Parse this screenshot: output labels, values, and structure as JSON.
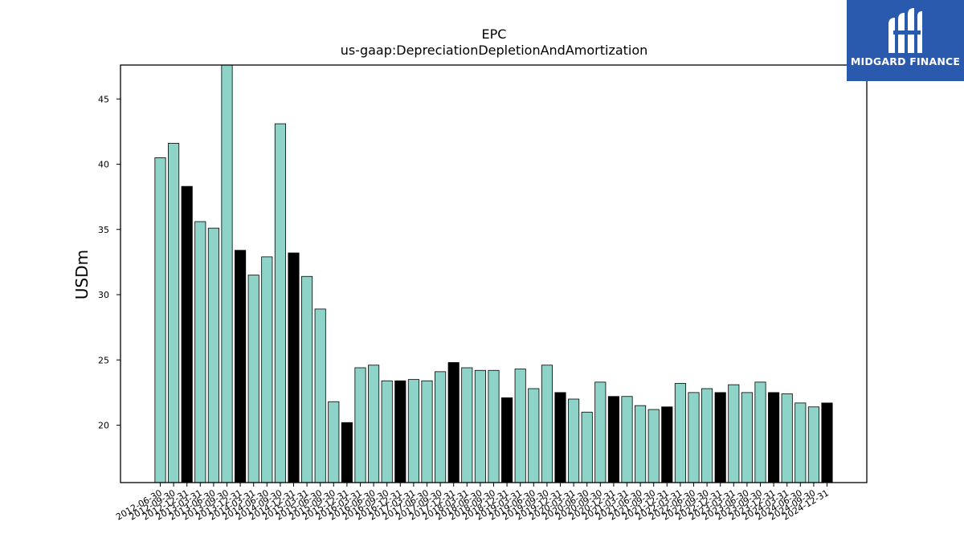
{
  "logo": {
    "text": "MIDGARD FINANCE",
    "icon": "midgard-finance-logo-icon"
  },
  "chart_data": {
    "type": "bar",
    "title": "EPC",
    "subtitle": "us-gaap:DepreciationDepletionAndAmortization",
    "xlabel": "",
    "ylabel": "USDm",
    "ylim": [
      15.6,
      47.6
    ],
    "yticks": [
      20,
      25,
      30,
      35,
      40,
      45
    ],
    "grid": false,
    "colors": {
      "quarter": "#8dd3c7",
      "year_end": "#000000",
      "edge": "#000000"
    },
    "categories": [
      "2012-06-30",
      "2012-09-30",
      "2012-12-31",
      "2013-03-31",
      "2013-06-30",
      "2013-09-30",
      "2013-12-31",
      "2014-03-31",
      "2014-06-30",
      "2014-09-30",
      "2014-12-31",
      "2015-03-31",
      "2015-06-30",
      "2015-09-30",
      "2015-12-31",
      "2016-03-31",
      "2016-06-30",
      "2016-09-30",
      "2016-12-31",
      "2017-03-31",
      "2017-06-30",
      "2017-09-30",
      "2017-12-31",
      "2018-03-31",
      "2018-06-30",
      "2018-09-30",
      "2018-12-31",
      "2019-03-31",
      "2019-06-30",
      "2019-09-30",
      "2019-12-31",
      "2020-03-31",
      "2020-06-30",
      "2020-09-30",
      "2020-12-31",
      "2021-03-31",
      "2021-06-30",
      "2021-09-30",
      "2021-12-31",
      "2022-03-31",
      "2022-06-30",
      "2022-09-30",
      "2022-12-31",
      "2023-03-31",
      "2023-06-30",
      "2023-09-30",
      "2023-12-31",
      "2024-03-31",
      "2024-06-30",
      "2024-09-30",
      "2024-12-31"
    ],
    "values": [
      40.5,
      41.6,
      38.3,
      35.6,
      35.1,
      47.6,
      33.4,
      31.5,
      32.9,
      43.1,
      33.2,
      31.4,
      28.9,
      21.8,
      20.2,
      24.4,
      24.6,
      23.4,
      23.4,
      23.5,
      23.4,
      24.1,
      24.8,
      24.4,
      24.2,
      24.2,
      22.1,
      24.3,
      22.8,
      24.6,
      22.5,
      22.0,
      21.0,
      23.3,
      22.2,
      22.2,
      21.5,
      21.2,
      21.4,
      23.2,
      22.5,
      22.8,
      22.5,
      23.1,
      22.5,
      23.3,
      22.5,
      22.4,
      21.7,
      21.4,
      21.7
    ],
    "year_end": [
      false,
      false,
      true,
      false,
      false,
      false,
      true,
      false,
      false,
      false,
      true,
      false,
      false,
      false,
      true,
      false,
      false,
      false,
      true,
      false,
      false,
      false,
      true,
      false,
      false,
      false,
      true,
      false,
      false,
      false,
      true,
      false,
      false,
      false,
      true,
      false,
      false,
      false,
      true,
      false,
      false,
      false,
      true,
      false,
      false,
      false,
      true,
      false,
      false,
      false,
      true
    ]
  }
}
